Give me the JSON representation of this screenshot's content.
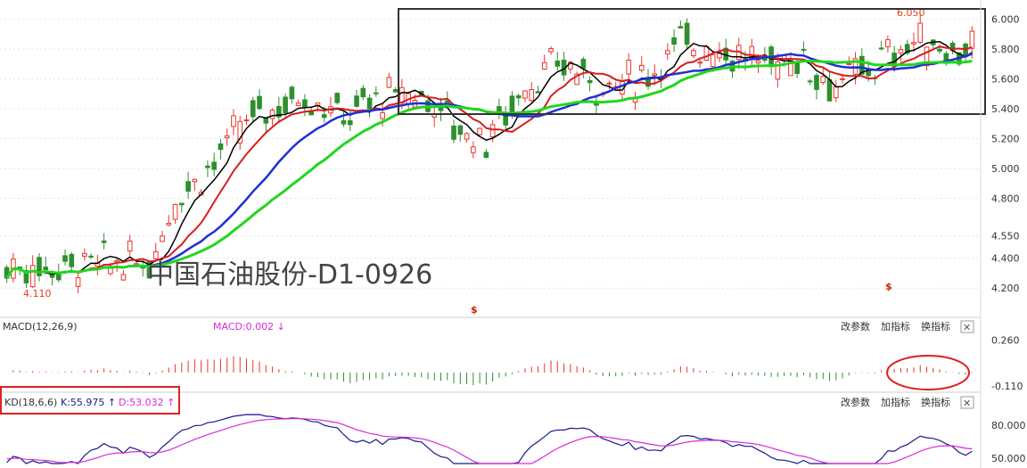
{
  "colors": {
    "up": "#e8362b",
    "down": "#2f8f2f",
    "ma_short": "#000000",
    "ma_mid": "#d81e1e",
    "ma_long": "#1f2fd6",
    "ma_xlong": "#22d61e",
    "k_line": "#1a1a8c",
    "d_line": "#d92ad9",
    "macd_label": "#d92ad9",
    "kd_k_label": "#1a1a8c",
    "kd_d_label": "#d92ad9",
    "annotation": "#e0401a",
    "grid": "#e6e6e6"
  },
  "chart_data": [
    {
      "type": "candlestick",
      "title": "中国石油股份-D1-0926",
      "ylim": [
        4.1,
        6.08
      ],
      "y_ticks": [
        6.0,
        5.8,
        5.6,
        5.4,
        5.2,
        5.0,
        4.8,
        4.55,
        4.4,
        4.2
      ],
      "y_tick_labels": [
        "6.000",
        "5.800",
        "5.600",
        "5.400",
        "5.200",
        "5.000",
        "4.800",
        "4.550",
        "4.400",
        "4.200"
      ],
      "grid": true,
      "annotations": {
        "high": "6.050",
        "low": "4.110"
      },
      "markers": [
        "$",
        "$"
      ],
      "series": [
        {
          "name": "",
          "role": "ma_short"
        },
        {
          "name": "",
          "role": "ma_mid"
        },
        {
          "name": "",
          "role": "ma_long"
        },
        {
          "name": "",
          "role": "ma_xlong"
        }
      ]
    },
    {
      "type": "bar",
      "label": "MACD(12,26,9)",
      "value_label": "MACD:0.002 ↓",
      "ylim": [
        -0.13,
        0.3
      ],
      "y_ticks": [
        0.26,
        -0.11
      ],
      "y_tick_labels": [
        "0.260",
        "-0.110"
      ]
    },
    {
      "type": "line",
      "label": "KD(18,6,6)",
      "k_label": "K:55.975 ↑",
      "d_label": "D:53.032 ↑",
      "ylim": [
        45,
        92
      ],
      "y_ticks": [
        80,
        50
      ],
      "y_tick_labels": [
        "80.000",
        "50.000"
      ],
      "series": [
        {
          "name": "K",
          "role": "k_line"
        },
        {
          "name": "D",
          "role": "d_line"
        }
      ]
    }
  ],
  "toolbar": {
    "params_label": "改参数",
    "add_indicator_label": "加指标",
    "switch_indicator_label": "换指标",
    "close_label": "✕"
  }
}
